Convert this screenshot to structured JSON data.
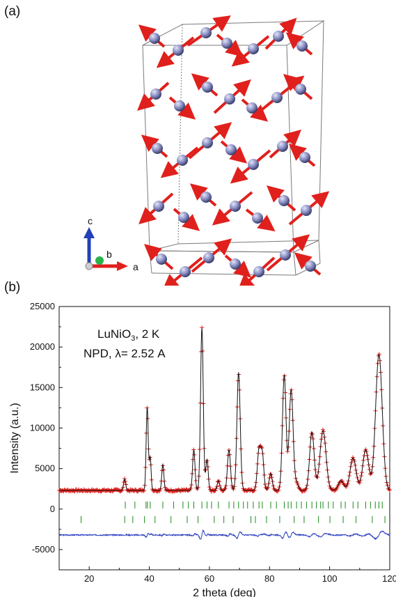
{
  "panels": {
    "a_label": "(a)",
    "b_label": "(b)"
  },
  "structure": {
    "axis_labels": {
      "a": "a",
      "b": "b",
      "c": "c"
    },
    "colors": {
      "atom": "#8a8fc4",
      "moment": "#e0201c",
      "cell": "#7a7a7a"
    }
  },
  "annotation": {
    "line1_main": "LuNiO",
    "line1_sub": "3",
    "line1_tail": ", 2 K",
    "line2": "NPD, λ= 2.52 A"
  },
  "chart_data": {
    "type": "line",
    "title": "",
    "xlabel": "2 theta (deg)",
    "ylabel": "Intensity (a.u.)",
    "xlim": [
      10,
      120
    ],
    "ylim": [
      -7500,
      25000
    ],
    "xticks": [
      20,
      40,
      60,
      80,
      100,
      120
    ],
    "xtick_labels": [
      "20",
      "40",
      "60",
      "80",
      "100",
      "120"
    ],
    "yticks": [
      -5000,
      0,
      5000,
      10000,
      15000,
      20000,
      25000
    ],
    "ytick_labels": [
      "-5000",
      "0",
      "5000",
      "10000",
      "15000",
      "20000",
      "25000"
    ],
    "background": 2300,
    "peaks": [
      {
        "x": 31.8,
        "y": 1400,
        "w": 0.35
      },
      {
        "x": 39.3,
        "y": 10200,
        "w": 0.35
      },
      {
        "x": 40.3,
        "y": 4000,
        "w": 0.3
      },
      {
        "x": 44.5,
        "y": 3200,
        "w": 0.35
      },
      {
        "x": 54.8,
        "y": 5000,
        "w": 0.4
      },
      {
        "x": 57.5,
        "y": 20000,
        "w": 0.45
      },
      {
        "x": 59.2,
        "y": 3800,
        "w": 0.4
      },
      {
        "x": 63.0,
        "y": 1200,
        "w": 0.4
      },
      {
        "x": 66.5,
        "y": 5000,
        "w": 0.5
      },
      {
        "x": 69.7,
        "y": 14500,
        "w": 0.55
      },
      {
        "x": 76.5,
        "y": 5000,
        "w": 0.55
      },
      {
        "x": 77.6,
        "y": 4300,
        "w": 0.5
      },
      {
        "x": 80.4,
        "y": 2100,
        "w": 0.5
      },
      {
        "x": 84.9,
        "y": 14200,
        "w": 0.6
      },
      {
        "x": 87.2,
        "y": 12400,
        "w": 0.65
      },
      {
        "x": 89.0,
        "y": 900,
        "w": 0.6
      },
      {
        "x": 94.1,
        "y": 7200,
        "w": 0.75
      },
      {
        "x": 97.8,
        "y": 7400,
        "w": 1.0
      },
      {
        "x": 103.8,
        "y": 1200,
        "w": 0.9
      },
      {
        "x": 107.8,
        "y": 4000,
        "w": 1.0
      },
      {
        "x": 112.0,
        "y": 5000,
        "w": 1.0
      },
      {
        "x": 116.4,
        "y": 16800,
        "w": 1.1
      }
    ],
    "series": [
      {
        "name": "",
        "style": "observed",
        "color": "#e0201c"
      },
      {
        "name": "",
        "style": "calculated",
        "color": "#111111"
      },
      {
        "name": "",
        "style": "difference",
        "color": "#2c3fbf",
        "offset": -3200
      }
    ],
    "reflections_nuclear": [
      32.0,
      35.2,
      38.9,
      39.4,
      40.3,
      44.5,
      48.1,
      51.2,
      53.0,
      54.8,
      57.5,
      59.2,
      60.7,
      63.0,
      66.5,
      68.1,
      69.7,
      71.3,
      72.7,
      74.6,
      76.5,
      77.6,
      80.4,
      82.3,
      84.9,
      86.2,
      87.2,
      89.0,
      90.6,
      92.3,
      94.1,
      95.6,
      97.0,
      97.8,
      99.6,
      101.2,
      103.8,
      105.2,
      107.8,
      109.4,
      112.0,
      113.6,
      115.2,
      116.4,
      117.5
    ],
    "reflections_magnetic": [
      17.3,
      31.8,
      34.5,
      38.4,
      41.9,
      47.2,
      52.6,
      56.2,
      61.6,
      64.8,
      67.9,
      73.8,
      75.3,
      79.0,
      83.4,
      88.2,
      91.5,
      96.3,
      100.1,
      104.5,
      108.8,
      114.2,
      118.4
    ],
    "reflection_rows": [
      500,
      -1300
    ],
    "reflection_color": "#1a8a1a"
  }
}
